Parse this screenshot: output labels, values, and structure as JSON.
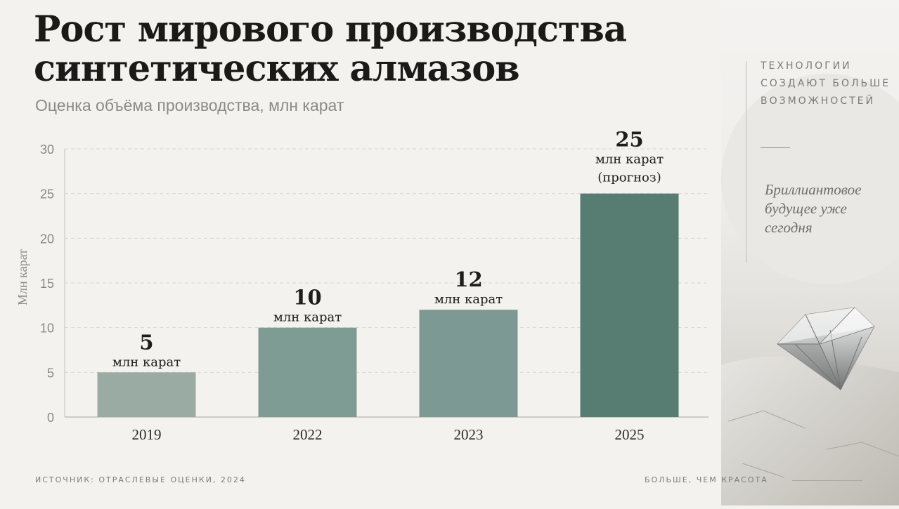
{
  "title": "Рост мирового производства синтетических алмазов",
  "subtitle": "Оценка объёма производства, млн карат",
  "sidebar": {
    "caption": "ТЕХНОЛОГИИ СОЗДАЮТ БОЛЬШЕ ВОЗМОЖНОСТЕЙ",
    "tagline": "Бриллиантовое будущее уже сегодня"
  },
  "footer": {
    "source": "ИСТОЧНИК: ОТРАСЛЕВЫЕ ОЦЕНКИ, 2024",
    "slogan": "БОЛЬШЕ, ЧЕМ КРАСОТА"
  },
  "colors": {
    "bar_2019": "#9aaba4",
    "bar_2022": "#7f9c94",
    "bar_2023": "#7c9a93",
    "bar_2025": "#577d73",
    "grid": "#d8d7d2",
    "axis_text": "#8a8a86"
  },
  "chart_data": {
    "type": "bar",
    "title": "Рост мирового производства синтетических алмазов",
    "subtitle": "Оценка объёма производства, млн карат",
    "ylabel": "Млн карат",
    "xlabel": "",
    "ylim": [
      0,
      30
    ],
    "yticks": [
      0,
      5,
      10,
      15,
      20,
      25,
      30
    ],
    "grid": true,
    "categories": [
      "2019",
      "2022",
      "2023",
      "2025"
    ],
    "values": [
      5,
      10,
      12,
      25
    ],
    "data_labels": [
      {
        "value": "5",
        "unit": "млн карат",
        "note": ""
      },
      {
        "value": "10",
        "unit": "млн карат",
        "note": ""
      },
      {
        "value": "12",
        "unit": "млн карат",
        "note": ""
      },
      {
        "value": "25",
        "unit": "млн карат",
        "note": "(прогноз)"
      }
    ]
  }
}
